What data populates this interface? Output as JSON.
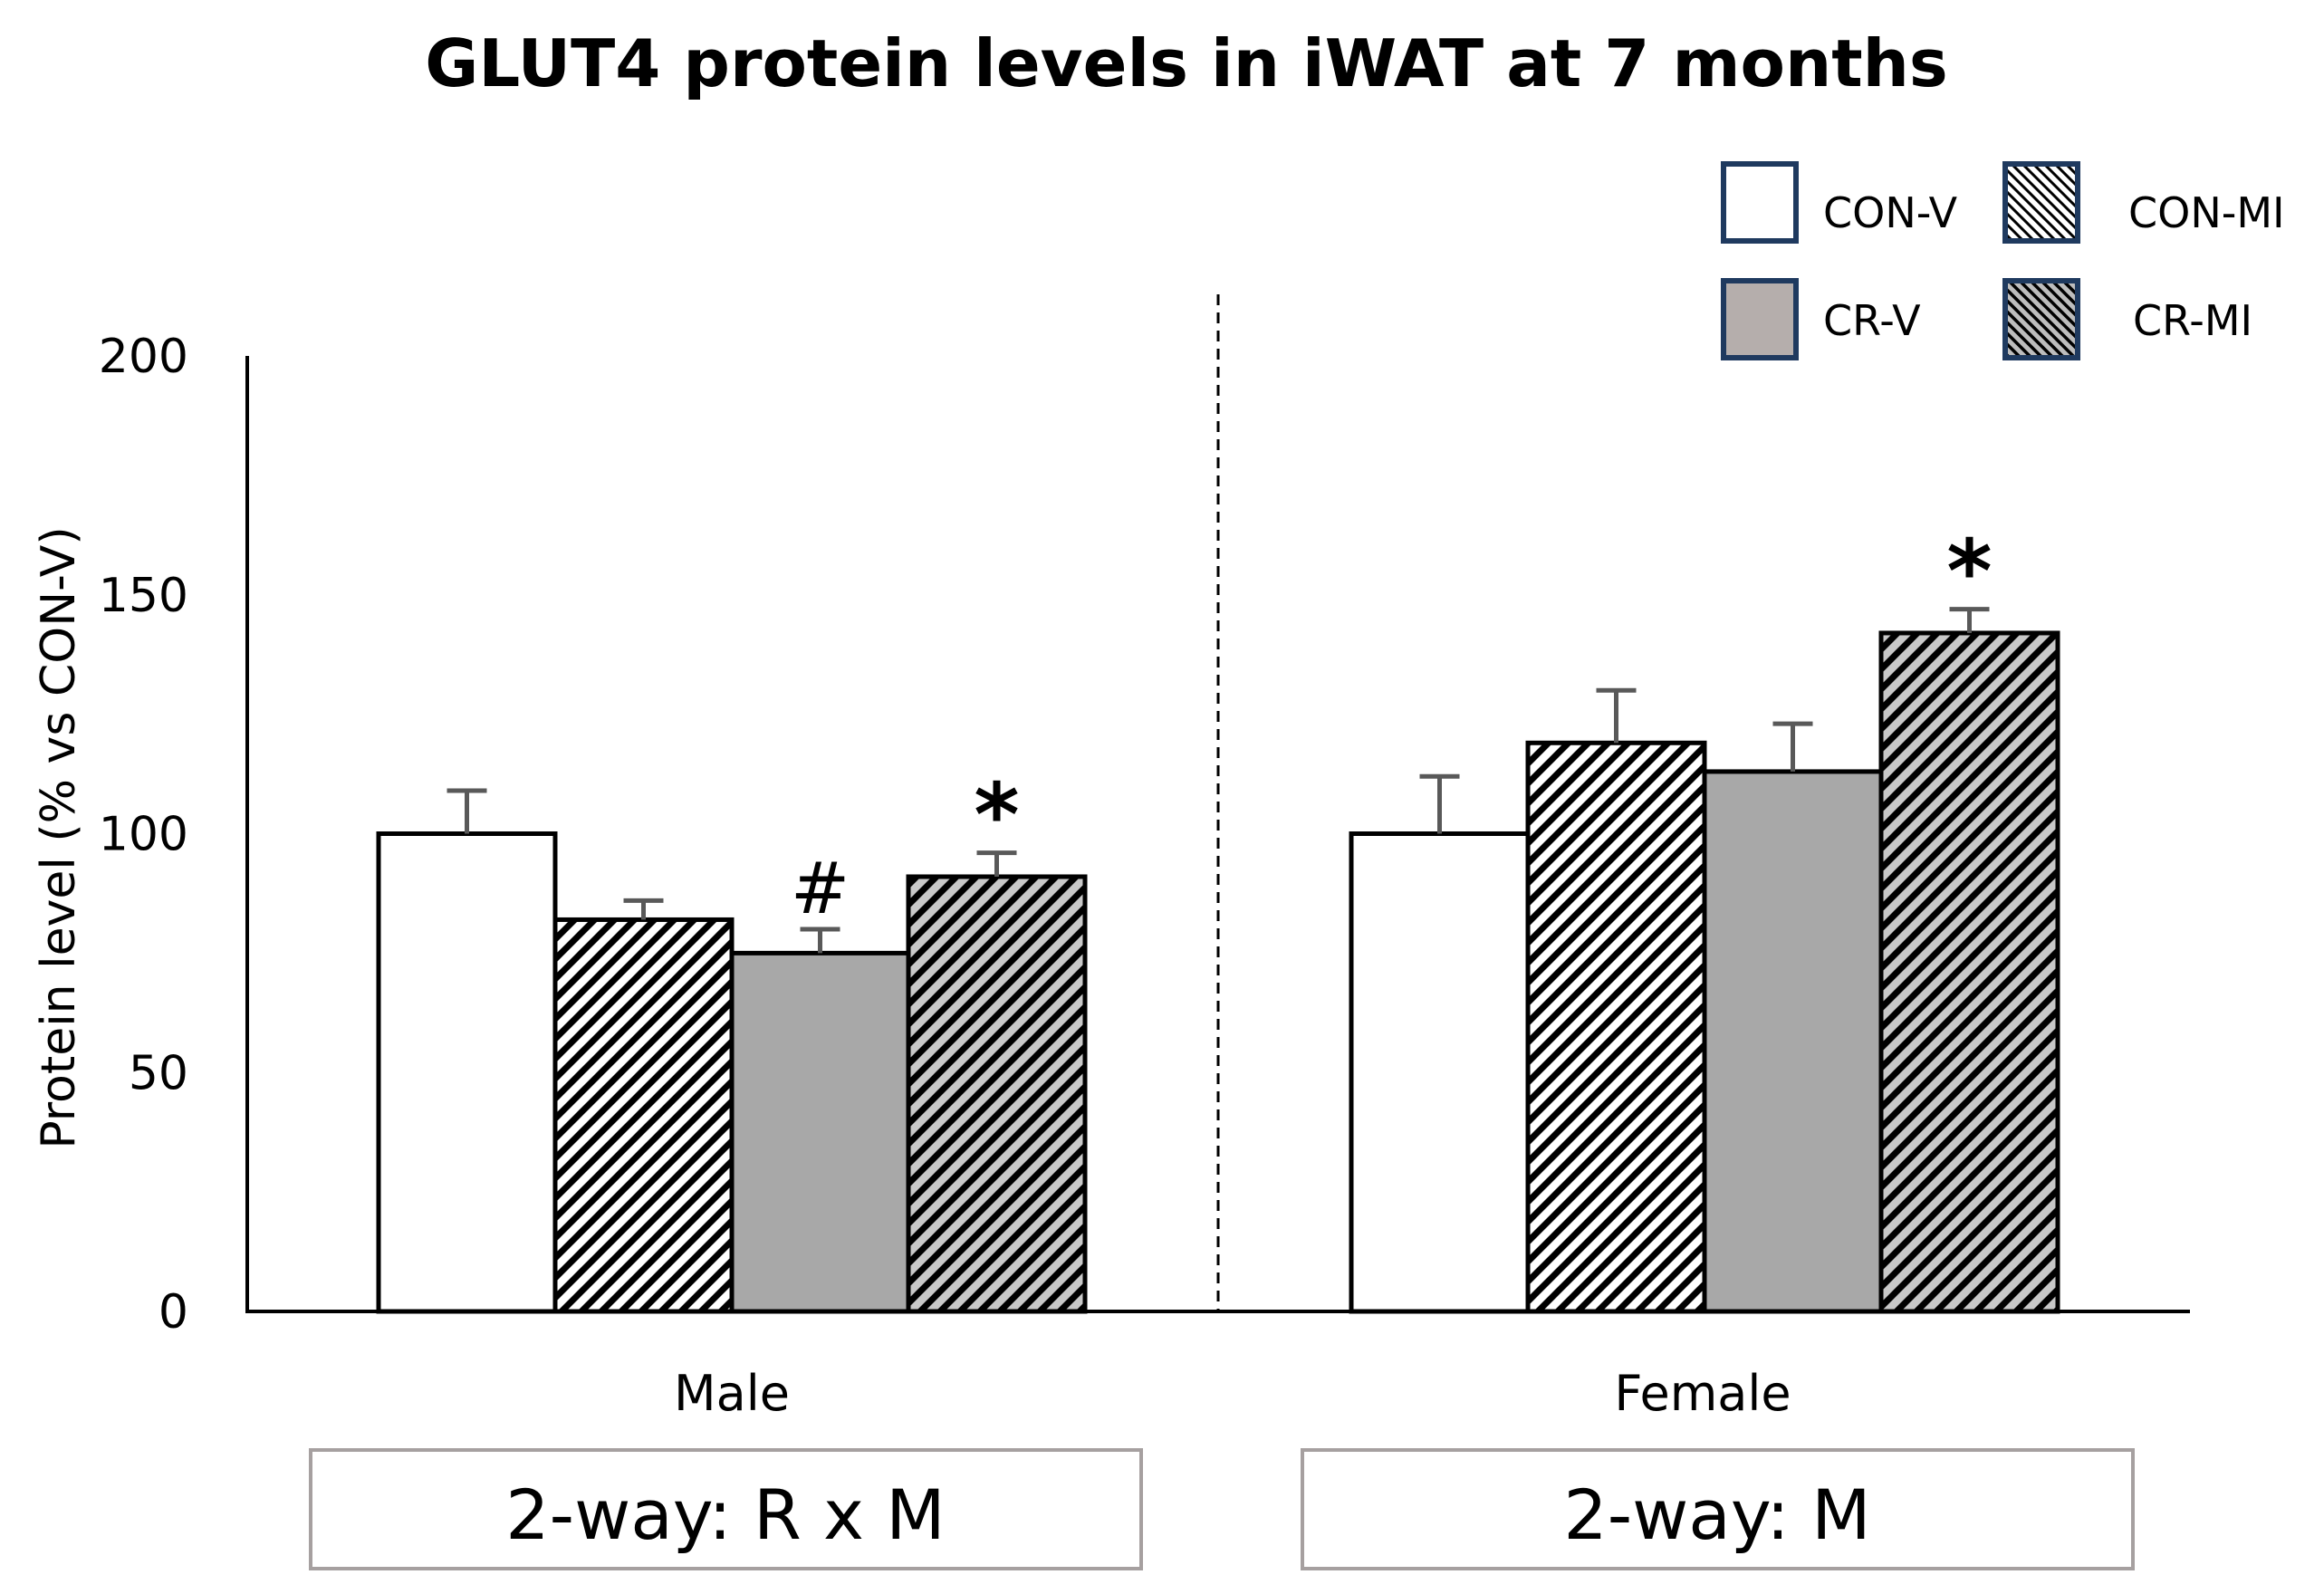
{
  "chart_data": {
    "type": "bar",
    "title": "GLUT4 protein levels in iWAT at 7 months",
    "xlabel": "",
    "ylabel": "Protein level (% vs CON-V)",
    "ylim": [
      0,
      200
    ],
    "yticks": [
      0,
      50,
      100,
      150,
      200
    ],
    "grid": false,
    "legend_position": "top-right",
    "categories": [
      "Male",
      "Female"
    ],
    "series": [
      {
        "name": "CON-V",
        "values": [
          100,
          100
        ],
        "errors": [
          9,
          12
        ],
        "fill": "white"
      },
      {
        "name": "CON-MI",
        "values": [
          82,
          119
        ],
        "errors": [
          4,
          11
        ],
        "fill": "hatch-white"
      },
      {
        "name": "CR-V",
        "values": [
          75,
          113
        ],
        "errors": [
          5,
          10
        ],
        "fill": "gray"
      },
      {
        "name": "CR-MI",
        "values": [
          91,
          142
        ],
        "errors": [
          5,
          5
        ],
        "fill": "hatch-gray"
      }
    ],
    "annotations": [
      {
        "category": "Male",
        "series": "CR-V",
        "text": "#"
      },
      {
        "category": "Male",
        "series": "CR-MI",
        "text": "*"
      },
      {
        "category": "Female",
        "series": "CR-MI",
        "text": "*"
      }
    ],
    "group_boxes": [
      "2-way: R x M",
      "2-way: M"
    ]
  },
  "colors": {
    "gray_fill": "#a8a8a8",
    "legend_border": "#1f3a5f",
    "error_bar": "#595959",
    "box_border": "#a6a0a0"
  }
}
